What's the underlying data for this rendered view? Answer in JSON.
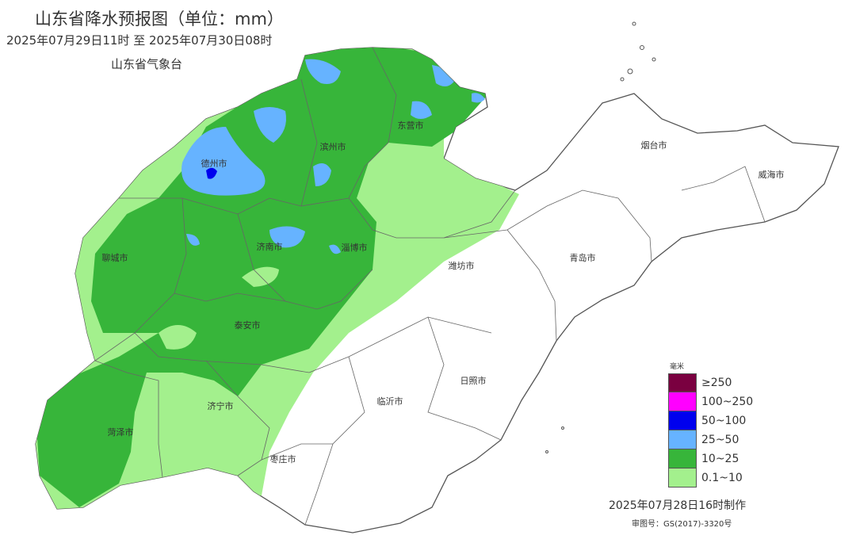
{
  "header": {
    "title": "山东省降水预报图（单位：mm）",
    "period": "2025年07月29日11时  至  2025年07月30日08时",
    "agency": "山东省气象台"
  },
  "cities": {
    "dezhou": "德州市",
    "binzhou": "滨州市",
    "dongying": "东营市",
    "yantai": "烟台市",
    "weihai": "威海市",
    "liaocheng": "聊城市",
    "jinan": "济南市",
    "zibo": "淄博市",
    "weifang": "潍坊市",
    "qingdao": "青岛市",
    "taian": "泰安市",
    "jining": "济宁市",
    "linyi": "临沂市",
    "rizhao": "日照市",
    "heze": "菏泽市",
    "zaozhuang": "枣庄市"
  },
  "legend": {
    "unit": "毫米",
    "items": [
      {
        "label": "≥250",
        "color": "#7a0040"
      },
      {
        "label": "100~250",
        "color": "#ff00ff"
      },
      {
        "label": "50~100",
        "color": "#0000ee"
      },
      {
        "label": "25~50",
        "color": "#66b3ff"
      },
      {
        "label": "10~25",
        "color": "#37b53a"
      },
      {
        "label": "0.1~10",
        "color": "#a3f08d"
      }
    ]
  },
  "footer": {
    "made": "2025年07月28日16时制作",
    "approval": "审图号：GS(2017)-3320号"
  }
}
